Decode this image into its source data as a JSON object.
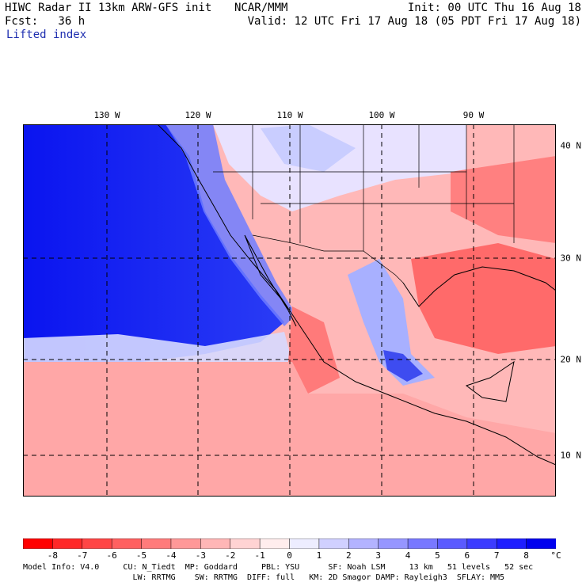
{
  "header": {
    "title": "HIWC Radar II 13km ARW-GFS init",
    "org": "NCAR/MMM",
    "init": "Init: 00 UTC Thu 16 Aug 18",
    "fcst": "Fcst:   36 h",
    "valid": "Valid: 12 UTC Fri 17 Aug 18 (05 PDT Fri 17 Aug 18)",
    "field": "Lifted index"
  },
  "map": {
    "lon_labels": [
      "130 W",
      "120 W",
      "110 W",
      "100 W",
      "90 W"
    ],
    "lat_labels": [
      "40 N",
      "30 N",
      "20 N",
      "10 N"
    ]
  },
  "colorbar": {
    "labels": [
      "-8",
      "-7",
      "-6",
      "-5",
      "-4",
      "-3",
      "-2",
      "-1",
      "0",
      "1",
      "2",
      "3",
      "4",
      "5",
      "6",
      "7",
      "8"
    ],
    "unit": "°C",
    "colors": [
      "#ff0000",
      "#ff2828",
      "#ff4545",
      "#ff6060",
      "#ff7b7b",
      "#ff9898",
      "#ffb6b6",
      "#ffd3d3",
      "#ffeded",
      "#ededff",
      "#d0d0ff",
      "#b3b3ff",
      "#9696ff",
      "#7878ff",
      "#5a5aff",
      "#3c3cff",
      "#1e1eff",
      "#0000ee"
    ]
  },
  "footer": {
    "line1": "Model Info: V4.0     CU: N_Tiedt  MP: Goddard     PBL: YSU      SF: Noah LSM     13 km   51 levels   52 sec",
    "line2": "                       LW: RRTMG    SW: RRTMG  DIFF: full   KM: 2D Smagor DAMP: Rayleigh3  SFLAY: MM5"
  }
}
